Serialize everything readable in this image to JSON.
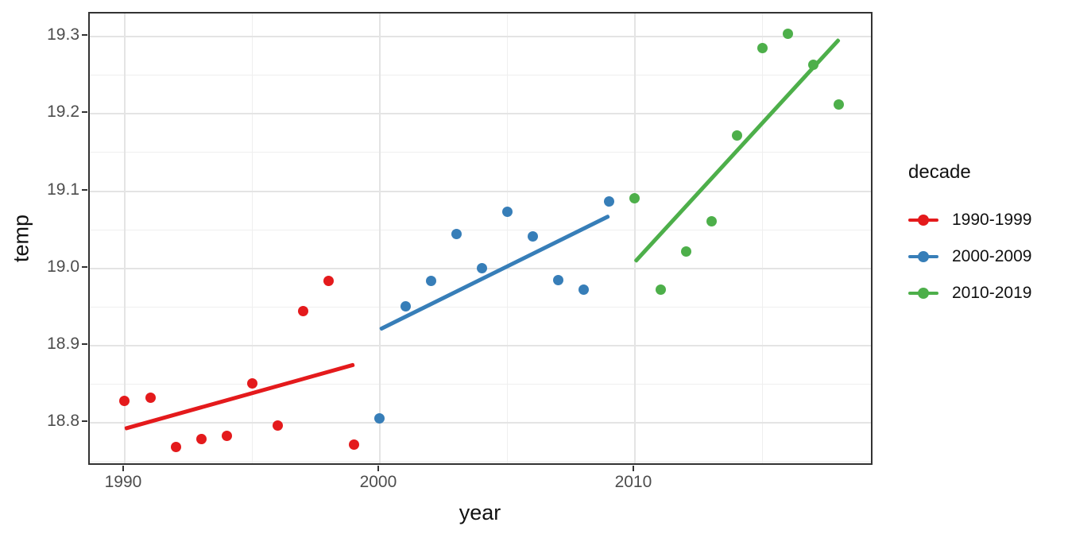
{
  "chart_data": {
    "type": "scatter",
    "title": "",
    "xlabel": "year",
    "ylabel": "temp",
    "legend_title": "decade",
    "legend_position": "right",
    "grid": true,
    "xlim": [
      1988.63,
      2019.38
    ],
    "ylim": [
      18.7435,
      19.33
    ],
    "x_ticks": [
      1990,
      2000,
      2010
    ],
    "x_tick_labels": [
      "1990",
      "2000",
      "2010"
    ],
    "x_minor_ticks": [
      1995,
      2005,
      2015
    ],
    "y_ticks": [
      18.8,
      18.9,
      19.0,
      19.1,
      19.2,
      19.3
    ],
    "y_tick_labels": [
      "18.8",
      "18.9",
      "19.0",
      "19.1",
      "19.2",
      "19.3"
    ],
    "y_minor_ticks": [
      18.75,
      18.85,
      18.95,
      19.05,
      19.15,
      19.25
    ],
    "series": [
      {
        "name": "1990-1999",
        "color": "#E41A1C",
        "points": [
          [
            1990,
            18.828
          ],
          [
            1991,
            18.832
          ],
          [
            1992,
            18.769
          ],
          [
            1993,
            18.779
          ],
          [
            1994,
            18.783
          ],
          [
            1995,
            18.851
          ],
          [
            1996,
            18.796
          ],
          [
            1997,
            18.945
          ],
          [
            1998,
            18.984
          ],
          [
            1999,
            18.772
          ]
        ],
        "trend": [
          [
            1990,
            18.793
          ],
          [
            1999,
            18.876
          ]
        ]
      },
      {
        "name": "2000-2009",
        "color": "#377EB8",
        "points": [
          [
            2000,
            18.806
          ],
          [
            2001,
            18.951
          ],
          [
            2002,
            18.984
          ],
          [
            2003,
            19.044
          ],
          [
            2004,
            19.0
          ],
          [
            2005,
            19.073
          ],
          [
            2006,
            19.041
          ],
          [
            2007,
            18.985
          ],
          [
            2008,
            18.972
          ],
          [
            2009,
            19.087
          ]
        ],
        "trend": [
          [
            2000,
            18.921
          ],
          [
            2009,
            19.068
          ]
        ]
      },
      {
        "name": "2010-2019",
        "color": "#4DAF4A",
        "points": [
          [
            2010,
            19.091
          ],
          [
            2011,
            18.972
          ],
          [
            2012,
            19.022
          ],
          [
            2013,
            19.061
          ],
          [
            2014,
            19.172
          ],
          [
            2015,
            19.285
          ],
          [
            2016,
            19.304
          ],
          [
            2017,
            19.264
          ],
          [
            2018,
            19.212
          ]
        ],
        "trend": [
          [
            2010,
            19.009
          ],
          [
            2018,
            19.297
          ]
        ]
      }
    ]
  }
}
